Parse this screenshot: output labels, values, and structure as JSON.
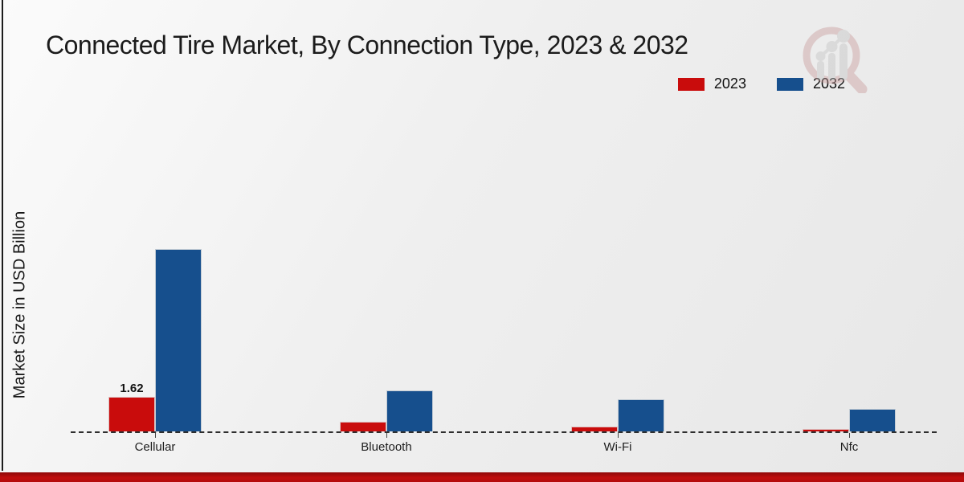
{
  "title": "Connected Tire Market, By Connection Type, 2023 & 2032",
  "ylabel": "Market Size in USD Billion",
  "colors": {
    "series_2023": "#c90c0c",
    "series_2032": "#164f8d",
    "footer_strip": "#bf0d0d",
    "baseline": "#2e2e2e",
    "background": "#ececec",
    "title_text": "#1b1b1b"
  },
  "legend": {
    "position": "top-right",
    "items": [
      {
        "label": "2023",
        "color": "#c90c0c"
      },
      {
        "label": "2032",
        "color": "#164f8d"
      }
    ]
  },
  "watermark": {
    "name": "market-research-magnifier-logo"
  },
  "chart_data": {
    "type": "bar",
    "title": "Connected Tire Market, By Connection Type, 2023 & 2032",
    "xlabel": "",
    "ylabel": "Market Size in USD Billion",
    "categories": [
      "Cellular",
      "Bluetooth",
      "Wi-Fi",
      "Nfc"
    ],
    "series": [
      {
        "name": "2023",
        "color": "#c90c0c",
        "values": [
          1.62,
          0.46,
          0.21,
          0.13
        ],
        "data_labels": [
          "1.62",
          "",
          "",
          ""
        ]
      },
      {
        "name": "2032",
        "color": "#164f8d",
        "values": [
          8.5,
          1.91,
          1.5,
          1.06
        ],
        "data_labels": [
          "",
          "",
          "",
          ""
        ]
      }
    ],
    "ylim": [
      0,
      9.5
    ],
    "axis_ticks_visible": false,
    "grid": false,
    "baseline_style": "dashed",
    "legend_position": "top-right"
  }
}
